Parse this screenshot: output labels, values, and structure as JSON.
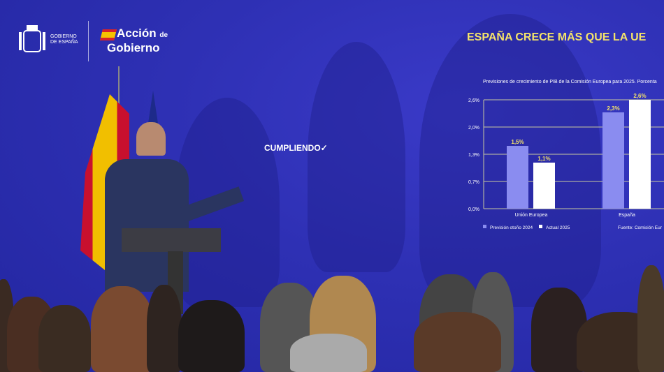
{
  "branding": {
    "government": "GOBIERNO DE ESPAÑA",
    "program_line1": "Acción",
    "program_de": "de",
    "program_line2": "Gobierno"
  },
  "screen": {
    "headline": "ESPAÑA CRECE MÁS QUE LA UE",
    "tagline": "CUMPLIENDO",
    "check_icon": "checkmark-icon"
  },
  "colors": {
    "background": "#2b2fb0",
    "headline": "#f4e36a",
    "series_forecast": "#8a8cf0",
    "series_actual": "#ffffff"
  },
  "chart_data": {
    "type": "bar",
    "title": "Previsiones de crecimiento de PIB de la Comisión Europea para 2025. Porcenta",
    "categories": [
      "Unión Europea",
      "España"
    ],
    "series": [
      {
        "name": "Previsión otoño 2024",
        "values": [
          1.5,
          2.3
        ],
        "labels": [
          "1,5%",
          "2,3%"
        ]
      },
      {
        "name": "Actual 2025",
        "values": [
          1.1,
          2.6
        ],
        "labels": [
          "1,1%",
          "2,6%"
        ]
      }
    ],
    "yticks": [
      "0,0%",
      "0,7%",
      "1,3%",
      "2,0%",
      "2,6%"
    ],
    "ylim": [
      0,
      2.6
    ],
    "grid": true,
    "legend": "bottom-left",
    "source": "Fuente: Comisión Eur"
  }
}
